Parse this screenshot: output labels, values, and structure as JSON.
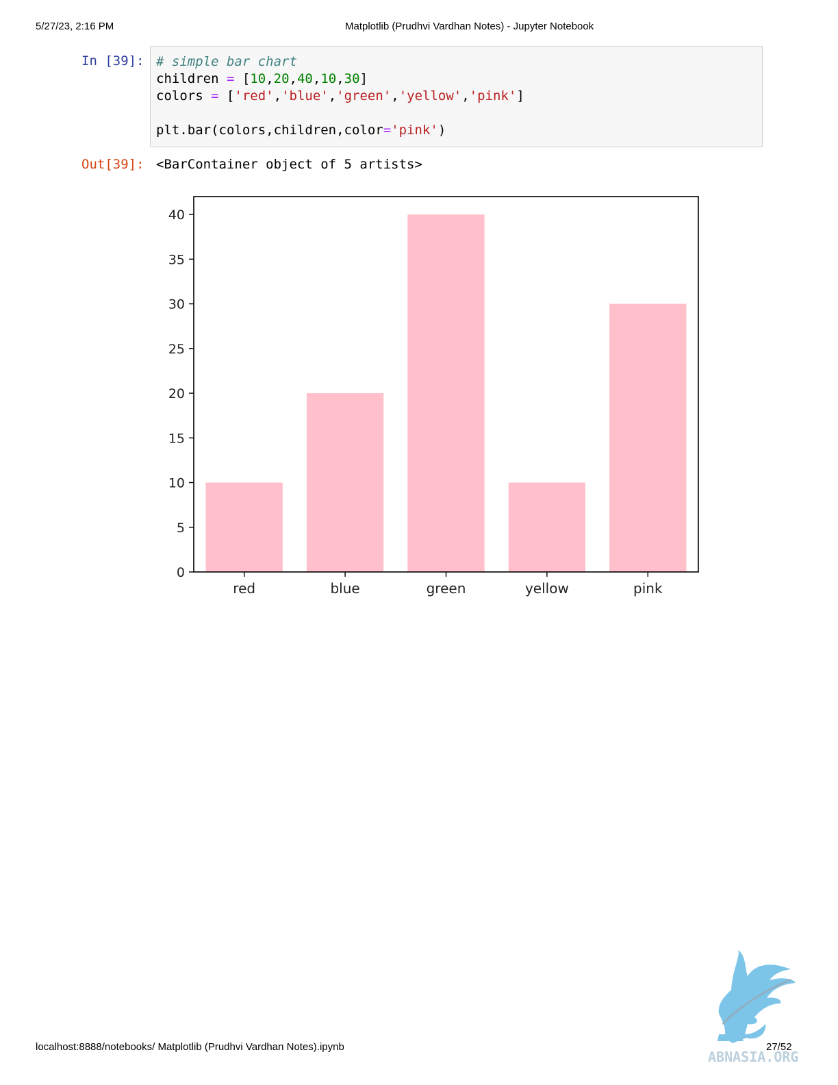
{
  "header": {
    "datetime": "5/27/23, 2:16 PM",
    "title": "Matplotlib (Prudhvi Vardhan Notes) - Jupyter Notebook"
  },
  "footer": {
    "url": "localhost:8888/notebooks/ Matplotlib (Prudhvi Vardhan Notes).ipynb",
    "page": "27/52"
  },
  "cell": {
    "in_prompt": "In [39]:",
    "out_prompt": "Out[39]:",
    "output_text": "<BarContainer object of 5 artists>",
    "code": {
      "line1": {
        "comment": "# simple bar chart"
      },
      "line2": {
        "name": "children",
        "eq": " = ",
        "open": "[",
        "n1": "10",
        "n2": "20",
        "n3": "40",
        "n4": "10",
        "n5": "30",
        "comma": ",",
        "close": "]"
      },
      "line3": {
        "name": "colors",
        "eq": " = ",
        "open": "[",
        "s1": "'red'",
        "s2": "'blue'",
        "s3": "'green'",
        "s4": "'yellow'",
        "s5": "'pink'",
        "comma": ",",
        "close": "]"
      },
      "line5": {
        "call": "plt.bar(colors,children,color",
        "eq": "=",
        "str": "'pink'",
        "close": ")"
      }
    }
  },
  "chart_data": {
    "type": "bar",
    "categories": [
      "red",
      "blue",
      "green",
      "yellow",
      "pink"
    ],
    "values": [
      10,
      20,
      40,
      10,
      30
    ],
    "bar_color": "#ffc0cb",
    "ylim": [
      0,
      42
    ],
    "yticks": [
      0,
      5,
      10,
      15,
      20,
      25,
      30,
      35,
      40
    ],
    "title": "",
    "xlabel": "",
    "ylabel": "",
    "grid": false
  },
  "watermark": {
    "text": "ABNASIA.ORG",
    "color": "#7cc4e8"
  }
}
